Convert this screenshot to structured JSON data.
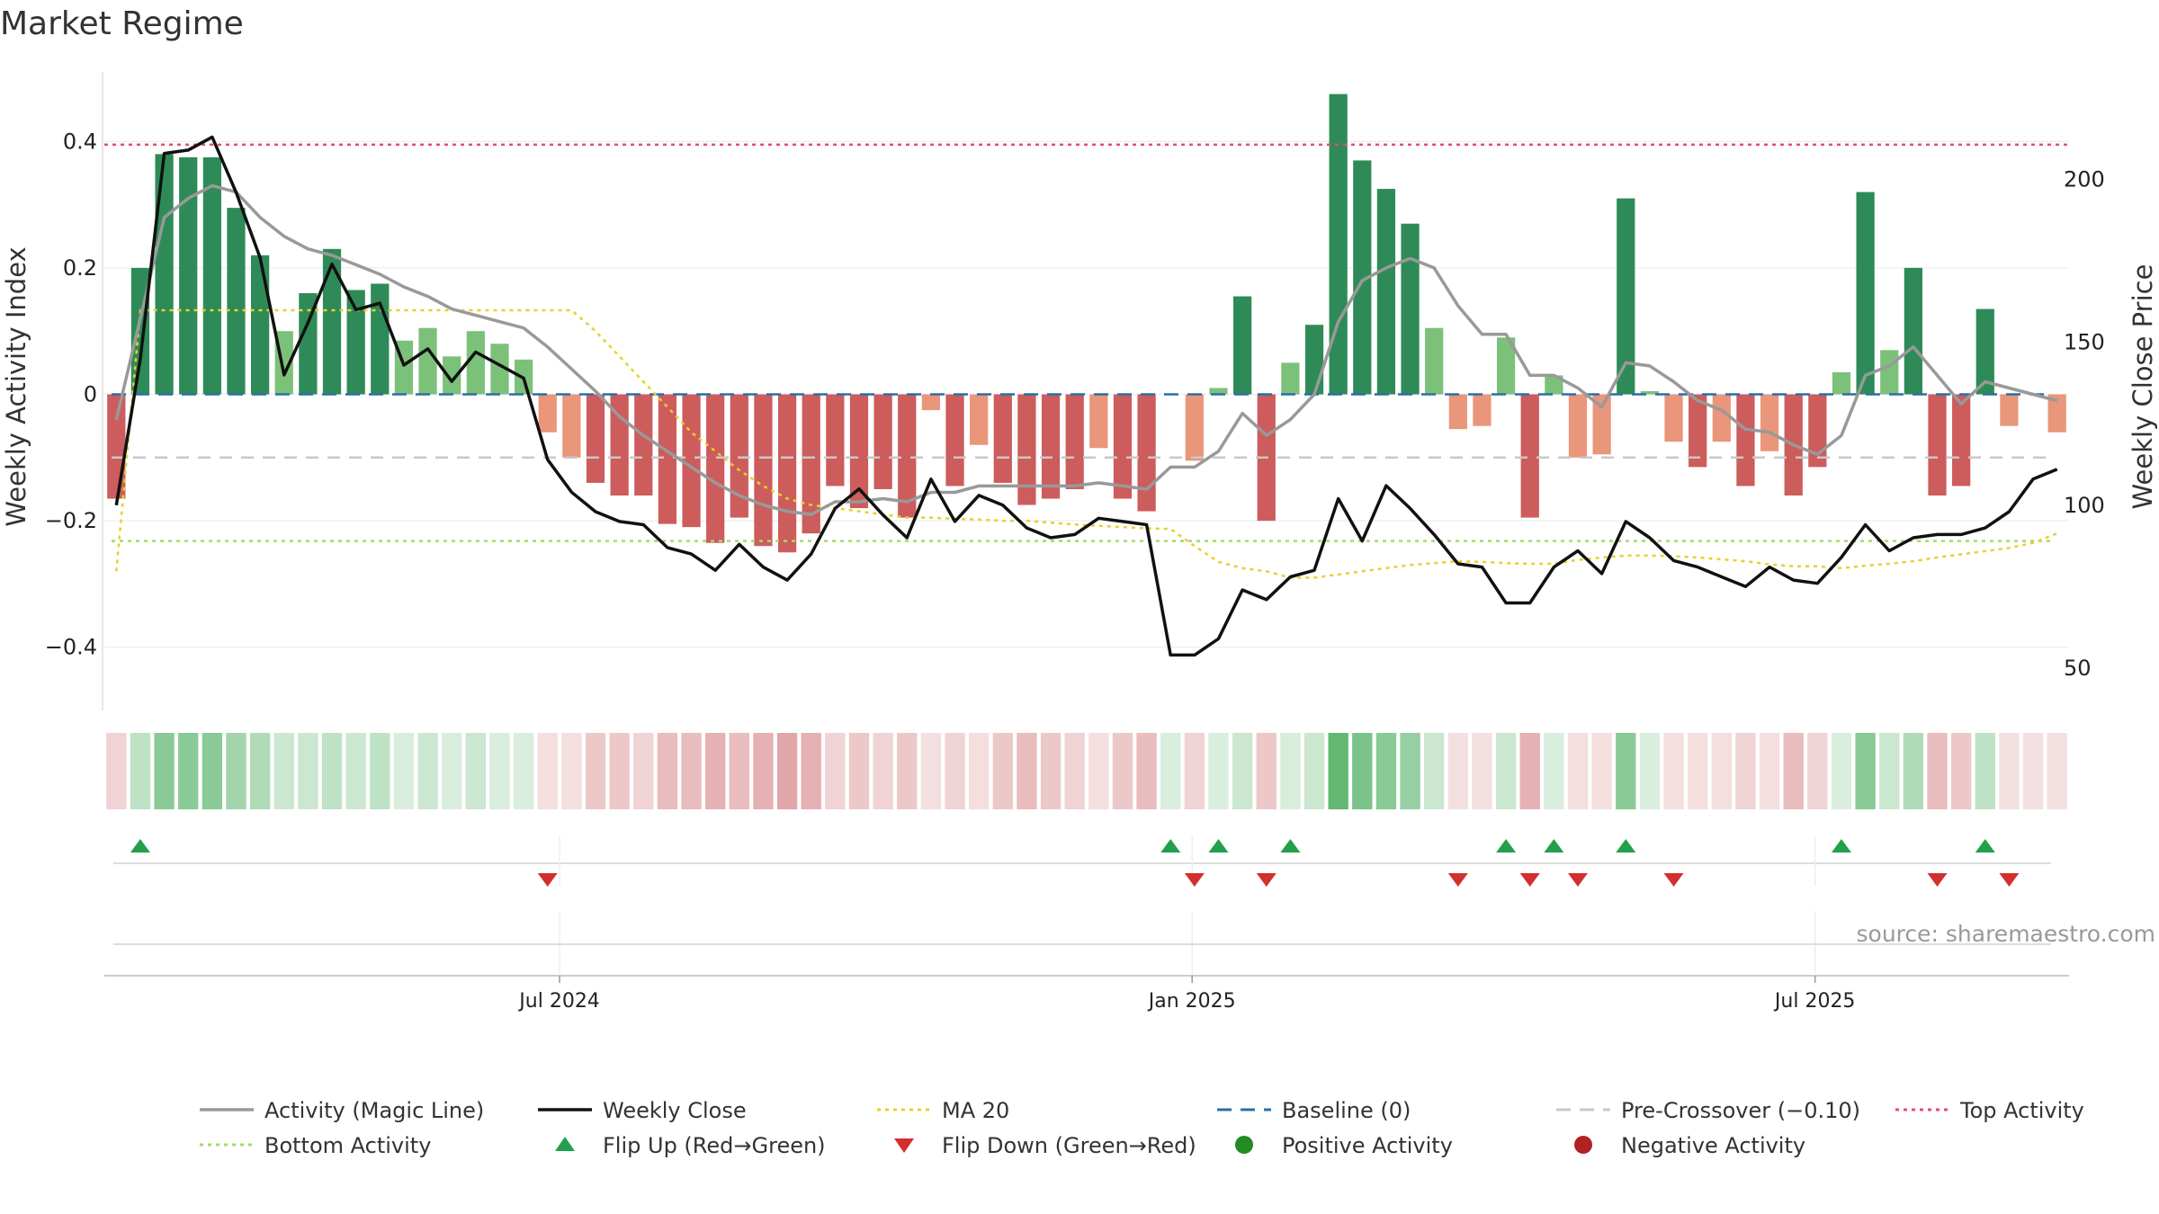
{
  "chart_data": {
    "type": "bar",
    "title": "Market Regime",
    "ylabel": "Weekly Activity Index",
    "y2label": "Weekly Close Price",
    "ylim": [
      -0.5,
      0.51
    ],
    "y2lim": [
      37,
      233
    ],
    "yticks": [
      {
        "v": 0.4,
        "label": "0.4"
      },
      {
        "v": 0.2,
        "label": "0.2"
      },
      {
        "v": 0,
        "label": "0"
      },
      {
        "v": -0.2,
        "label": "−0.2"
      },
      {
        "v": -0.4,
        "label": "−0.4"
      }
    ],
    "y2ticks": [
      {
        "v": 200,
        "label": "200"
      },
      {
        "v": 150,
        "label": "150"
      },
      {
        "v": 100,
        "label": "100"
      },
      {
        "v": 50,
        "label": "50"
      }
    ],
    "xticks": [
      {
        "i": 18.5,
        "label": "Jul 2024"
      },
      {
        "i": 44.9,
        "label": "Jan 2025"
      },
      {
        "i": 70.9,
        "label": "Jul 2025"
      }
    ],
    "x_count": 82,
    "source": "source: sharemaestro.com",
    "top_activity": 0.395,
    "bottom_activity": -0.232,
    "baseline": 0,
    "pre_crossover": -0.1,
    "activity_index": [
      -0.165,
      0.2,
      0.38,
      0.375,
      0.375,
      0.295,
      0.22,
      0.1,
      0.16,
      0.23,
      0.165,
      0.175,
      0.085,
      0.105,
      0.06,
      0.1,
      0.08,
      0.055,
      -0.06,
      -0.1,
      -0.14,
      -0.16,
      -0.16,
      -0.205,
      -0.21,
      -0.235,
      -0.195,
      -0.24,
      -0.25,
      -0.22,
      -0.145,
      -0.18,
      -0.15,
      -0.195,
      -0.025,
      -0.145,
      -0.08,
      -0.14,
      -0.175,
      -0.165,
      -0.15,
      -0.085,
      -0.165,
      -0.185,
      0,
      -0.105,
      0.01,
      0.155,
      -0.2,
      0.05,
      0.11,
      0.475,
      0.37,
      0.325,
      0.27,
      0.105,
      -0.055,
      -0.05,
      0.09,
      -0.195,
      0.03,
      -0.1,
      -0.095,
      0.31,
      0.005,
      -0.075,
      -0.115,
      -0.075,
      -0.145,
      -0.09,
      -0.16,
      -0.115,
      0.035,
      0.32,
      0.07,
      0.2,
      -0.16,
      -0.145,
      0.135,
      -0.05,
      0,
      -0.06
    ],
    "magic_line": [
      -0.04,
      0.12,
      0.28,
      0.31,
      0.33,
      0.32,
      0.28,
      0.25,
      0.23,
      0.22,
      0.205,
      0.19,
      0.17,
      0.155,
      0.135,
      0.125,
      0.115,
      0.105,
      0.075,
      0.04,
      0.005,
      -0.035,
      -0.065,
      -0.09,
      -0.115,
      -0.14,
      -0.16,
      -0.175,
      -0.185,
      -0.19,
      -0.17,
      -0.17,
      -0.165,
      -0.17,
      -0.155,
      -0.155,
      -0.145,
      -0.145,
      -0.145,
      -0.145,
      -0.145,
      -0.14,
      -0.145,
      -0.15,
      -0.115,
      -0.115,
      -0.09,
      -0.03,
      -0.065,
      -0.04,
      0,
      0.115,
      0.18,
      0.2,
      0.215,
      0.2,
      0.14,
      0.095,
      0.095,
      0.03,
      0.03,
      0.01,
      -0.02,
      0.05,
      0.045,
      0.02,
      -0.01,
      -0.025,
      -0.055,
      -0.06,
      -0.08,
      -0.095,
      -0.065,
      0.03,
      0.045,
      0.075,
      0.03,
      -0.015,
      0.02,
      0.01,
      0,
      -0.01
    ],
    "weekly_close": [
      100,
      145,
      208,
      209,
      213,
      196,
      176,
      140,
      156,
      174,
      160,
      162,
      143,
      148,
      138,
      147,
      143,
      139,
      114,
      104,
      98,
      95,
      94,
      87,
      85,
      80,
      88,
      81,
      77,
      85,
      99,
      105,
      97,
      90,
      108,
      95,
      103,
      100,
      93,
      90,
      91,
      96,
      95,
      94,
      54,
      54,
      59,
      74,
      71,
      78,
      80,
      102,
      89,
      106,
      99,
      91,
      82,
      81,
      70,
      70,
      81,
      86,
      79,
      95,
      90,
      83,
      81,
      78,
      75,
      81,
      77,
      76,
      84,
      94,
      86,
      90,
      91,
      91,
      93,
      98,
      108,
      111
    ],
    "ma20": [
      -0.28,
      0.133,
      0.133,
      0.133,
      0.133,
      0.133,
      0.133,
      0.133,
      0.133,
      0.133,
      0.133,
      0.133,
      0.133,
      0.133,
      0.133,
      0.133,
      0.133,
      0.133,
      0.133,
      0.133,
      0.1,
      0.06,
      0.02,
      -0.02,
      -0.06,
      -0.09,
      -0.12,
      -0.145,
      -0.165,
      -0.175,
      -0.18,
      -0.185,
      -0.19,
      -0.195,
      -0.195,
      -0.197,
      -0.198,
      -0.2,
      -0.2,
      -0.203,
      -0.206,
      -0.208,
      -0.21,
      -0.212,
      -0.213,
      -0.24,
      -0.265,
      -0.275,
      -0.28,
      -0.29,
      -0.29,
      -0.285,
      -0.28,
      -0.275,
      -0.27,
      -0.267,
      -0.264,
      -0.265,
      -0.267,
      -0.268,
      -0.268,
      -0.262,
      -0.258,
      -0.255,
      -0.255,
      -0.256,
      -0.258,
      -0.261,
      -0.264,
      -0.269,
      -0.272,
      -0.272,
      -0.275,
      -0.271,
      -0.268,
      -0.264,
      -0.258,
      -0.253,
      -0.248,
      -0.243,
      -0.235,
      -0.22
    ],
    "strip": [
      -0.2,
      0.25,
      0.45,
      0.45,
      0.45,
      0.35,
      0.3,
      0.2,
      0.2,
      0.25,
      0.2,
      0.25,
      0.15,
      0.2,
      0.15,
      0.2,
      0.15,
      0.1,
      -0.15,
      -0.15,
      -0.25,
      -0.25,
      -0.2,
      -0.3,
      -0.3,
      -0.35,
      -0.3,
      -0.35,
      -0.4,
      -0.35,
      -0.2,
      -0.25,
      -0.2,
      -0.25,
      -0.05,
      -0.2,
      -0.15,
      -0.25,
      -0.3,
      -0.25,
      -0.2,
      -0.15,
      -0.25,
      -0.3,
      0.05,
      -0.2,
      0.05,
      0.2,
      -0.25,
      0.15,
      0.2,
      0.6,
      0.5,
      0.45,
      0.4,
      0.2,
      -0.1,
      -0.1,
      0.2,
      -0.35,
      0.1,
      -0.15,
      -0.15,
      0.45,
      0.05,
      -0.15,
      -0.15,
      -0.15,
      -0.2,
      -0.15,
      -0.3,
      -0.2,
      0.1,
      0.45,
      0.2,
      0.3,
      -0.3,
      -0.25,
      0.25,
      -0.1,
      -0.1,
      -0.1
    ],
    "flip_up": [
      1,
      44,
      46,
      49,
      58,
      60,
      63,
      72,
      78
    ],
    "flip_down": [
      18,
      45,
      48,
      56,
      59,
      61,
      65,
      76,
      79
    ],
    "legend": [
      {
        "label": "Activity (Magic Line)",
        "kind": "line",
        "color": "#999999"
      },
      {
        "label": "Weekly Close",
        "kind": "line",
        "color": "#111111"
      },
      {
        "label": "MA 20",
        "kind": "dotted",
        "color": "#e6d12a"
      },
      {
        "label": "Baseline (0)",
        "kind": "dashed",
        "color": "#2c6fa3"
      },
      {
        "label": "Pre-Crossover (−0.10)",
        "kind": "dashed",
        "color": "#c8c8c8"
      },
      {
        "label": "Top Activity",
        "kind": "dotted",
        "color": "#e0506a"
      },
      {
        "label": "Bottom Activity",
        "kind": "dotted",
        "color": "#a8d86c"
      },
      {
        "label": "Flip Up (Red→Green)",
        "kind": "triup",
        "color": "#22a04b"
      },
      {
        "label": "Flip Down (Green→Red)",
        "kind": "tridown",
        "color": "#d32f2f"
      },
      {
        "label": "Positive Activity",
        "kind": "dot",
        "color": "#228b22"
      },
      {
        "label": "Negative Activity",
        "kind": "dot",
        "color": "#b22222"
      }
    ],
    "colors": {
      "pos_strong": "#2e8b57",
      "pos_light": "#7cc17a",
      "neg_strong": "#cd5c5c",
      "neg_light": "#e9967a",
      "close": "#111111",
      "magic": "#999999"
    }
  }
}
